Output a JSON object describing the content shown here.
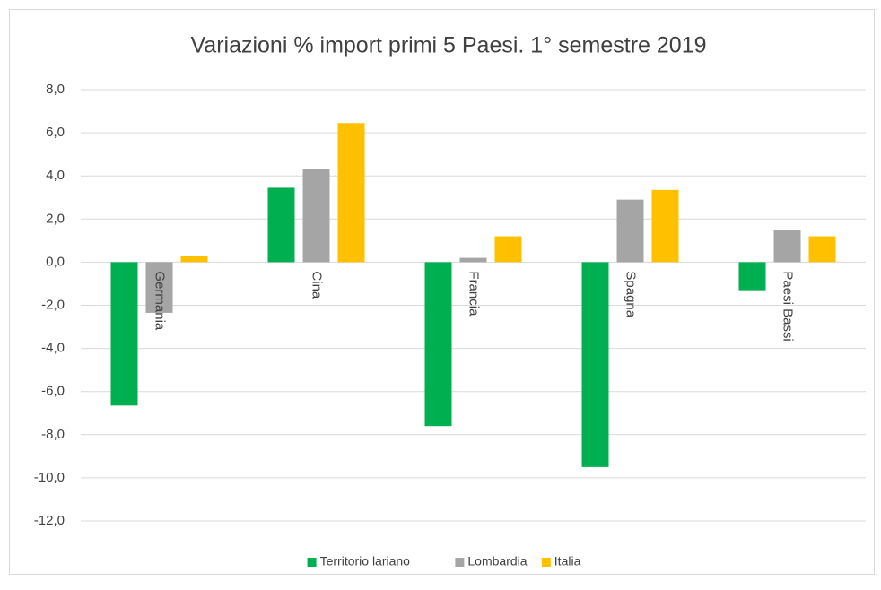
{
  "chart_data": {
    "type": "bar",
    "title": "Variazioni % import primi 5 Paesi.  1° semestre 2019",
    "categories": [
      "Germania",
      "Cina",
      "Francia",
      "Spagna",
      "Paesi Bassi"
    ],
    "series": [
      {
        "name": "Territorio lariano",
        "color": "#00b050",
        "values": [
          -6.65,
          3.45,
          -7.6,
          -9.5,
          -1.3
        ]
      },
      {
        "name": "Lombardia",
        "color": "#a5a5a5",
        "values": [
          -2.35,
          4.3,
          0.2,
          2.9,
          1.5
        ]
      },
      {
        "name": "Italia",
        "color": "#ffc000",
        "values": [
          0.3,
          6.45,
          1.2,
          3.35,
          1.2
        ]
      }
    ],
    "ylim": [
      -12,
      8
    ],
    "yticks": [
      {
        "value": -12,
        "label": "-12,0"
      },
      {
        "value": -10,
        "label": "-10,0"
      },
      {
        "value": -8,
        "label": "-8,0"
      },
      {
        "value": -6,
        "label": "-6,0"
      },
      {
        "value": -4,
        "label": "-4,0"
      },
      {
        "value": -2,
        "label": "-2,0"
      },
      {
        "value": 0,
        "label": "0,0"
      },
      {
        "value": 2,
        "label": "2,0"
      },
      {
        "value": 4,
        "label": "4,0"
      },
      {
        "value": 6,
        "label": "6,0"
      },
      {
        "value": 8,
        "label": "8,0"
      }
    ],
    "grid": true,
    "legend": "bottom"
  }
}
